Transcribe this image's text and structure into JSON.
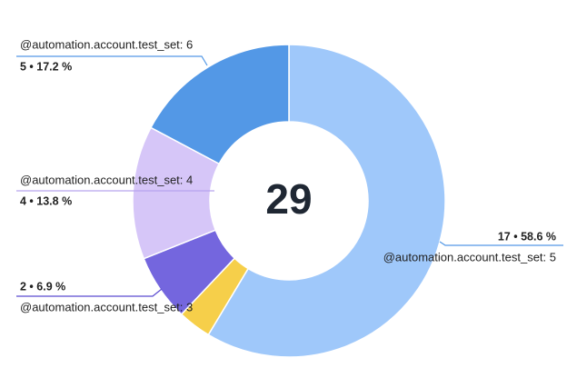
{
  "chart_data": {
    "type": "donut",
    "total": 29,
    "categories": [
      "@automation.account.test_set: 5",
      null,
      "@automation.account.test_set: 3",
      "@automation.account.test_set: 4",
      "@automation.account.test_set: 6"
    ],
    "values": [
      17,
      1,
      2,
      4,
      5
    ],
    "value_labels": [
      "17 • 58.6 %",
      null,
      "2 • 6.9 %",
      "4 • 13.8 %",
      "5 • 17.2 %"
    ],
    "colors": [
      "#9fc8fa",
      "#f6cf4a",
      "#7466de",
      "#d6c6f8",
      "#5398e6"
    ],
    "line_colors": [
      "#5398e6",
      "#f6cf4a",
      "#5a4bd0",
      "#b7a4ee",
      "#5398e6"
    ]
  }
}
